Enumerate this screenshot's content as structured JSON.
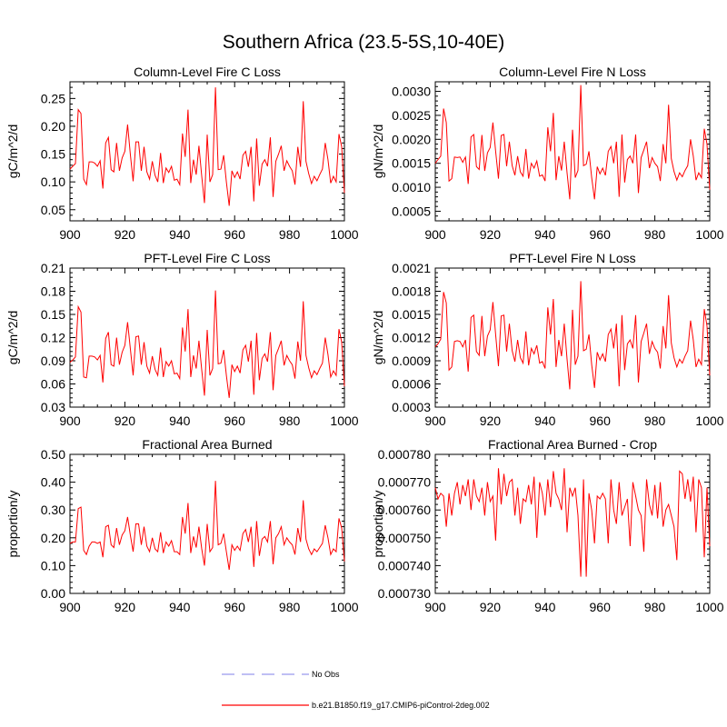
{
  "figure": {
    "title": "Southern Africa (23.5-5S,10-40E)"
  },
  "legend": {
    "placement": "bottom-center",
    "entries": [
      {
        "label": "No Obs",
        "color": "#9999ee",
        "dash": true
      },
      {
        "label": "b.e21.B1850.f19_g17.CMIP6-piControl-2deg.002",
        "color": "#ff0000",
        "dash": false
      }
    ]
  },
  "chart_data": [
    {
      "type": "line",
      "title": "Column-Level Fire C Loss",
      "xlabel": "",
      "ylabel": "gC/m^2/d",
      "xlim": [
        900,
        1000
      ],
      "ylim": [
        0.03,
        0.28
      ],
      "xticks": [
        900,
        920,
        940,
        960,
        980,
        1000
      ],
      "yticks": [
        0.05,
        0.1,
        0.15,
        0.2,
        0.25
      ],
      "ytick_labels": [
        "0.05",
        "0.10",
        "0.15",
        "0.20",
        "0.25"
      ],
      "x_start": 900,
      "series": [
        {
          "name": "b.e21.B1850.f19_g17.CMIP6-piControl-2deg.002",
          "color": "#ff0000",
          "values": [
            0.123,
            0.128,
            0.133,
            0.23,
            0.223,
            0.105,
            0.095,
            0.136,
            0.136,
            0.134,
            0.128,
            0.138,
            0.088,
            0.17,
            0.18,
            0.122,
            0.118,
            0.17,
            0.12,
            0.143,
            0.155,
            0.203,
            0.15,
            0.101,
            0.172,
            0.172,
            0.12,
            0.163,
            0.118,
            0.105,
            0.137,
            0.112,
            0.1,
            0.152,
            0.098,
            0.125,
            0.117,
            0.128,
            0.103,
            0.105,
            0.095,
            0.187,
            0.145,
            0.23,
            0.098,
            0.14,
            0.113,
            0.165,
            0.11,
            0.062,
            0.185,
            0.1,
            0.113,
            0.27,
            0.122,
            0.123,
            0.148,
            0.1,
            0.057,
            0.12,
            0.108,
            0.118,
            0.105,
            0.148,
            0.155,
            0.127,
            0.163,
            0.065,
            0.178,
            0.093,
            0.132,
            0.14,
            0.128,
            0.18,
            0.073,
            0.137,
            0.15,
            0.165,
            0.12,
            0.138,
            0.128,
            0.12,
            0.095,
            0.163,
            0.127,
            0.245,
            0.137,
            0.115,
            0.097,
            0.11,
            0.102,
            0.113,
            0.123,
            0.17,
            0.14,
            0.098,
            0.11,
            0.1,
            0.186,
            0.163,
            0.08
          ]
        }
      ]
    },
    {
      "type": "line",
      "title": "Column-Level Fire N Loss",
      "xlabel": "",
      "ylabel": "gN/m^2/d",
      "xlim": [
        900,
        1000
      ],
      "ylim": [
        0.0003,
        0.0032
      ],
      "xticks": [
        900,
        920,
        940,
        960,
        980,
        1000
      ],
      "yticks": [
        0.0005,
        0.001,
        0.0015,
        0.002,
        0.0025,
        0.003
      ],
      "ytick_labels": [
        "0.0005",
        "0.0010",
        "0.0015",
        "0.0020",
        "0.0025",
        "0.0030"
      ],
      "x_start": 900,
      "series": [
        {
          "name": "b.e21.B1850.f19_g17.CMIP6-piControl-2deg.002",
          "color": "#ff0000",
          "values": [
            0.0015,
            0.00158,
            0.00165,
            0.00264,
            0.00235,
            0.00113,
            0.00118,
            0.00163,
            0.00162,
            0.00163,
            0.00152,
            0.00163,
            0.00107,
            0.00205,
            0.0021,
            0.00143,
            0.00137,
            0.00209,
            0.00134,
            0.00172,
            0.00183,
            0.00235,
            0.00175,
            0.00118,
            0.00208,
            0.0021,
            0.00144,
            0.00195,
            0.00145,
            0.00125,
            0.00165,
            0.00132,
            0.00123,
            0.0018,
            0.00118,
            0.0015,
            0.0014,
            0.00155,
            0.00123,
            0.00126,
            0.00113,
            0.00225,
            0.00175,
            0.00255,
            0.00115,
            0.00165,
            0.00135,
            0.00195,
            0.0013,
            0.00075,
            0.0022,
            0.0012,
            0.00135,
            0.00313,
            0.00145,
            0.00148,
            0.00175,
            0.0012,
            0.00075,
            0.00143,
            0.00128,
            0.0014,
            0.00125,
            0.00175,
            0.00185,
            0.0015,
            0.00195,
            0.0008,
            0.0021,
            0.0011,
            0.00158,
            0.00165,
            0.0015,
            0.0021,
            0.00088,
            0.00162,
            0.00178,
            0.00195,
            0.0014,
            0.00162,
            0.0015,
            0.00143,
            0.00113,
            0.0019,
            0.0015,
            0.00272,
            0.0016,
            0.00133,
            0.00115,
            0.0013,
            0.00122,
            0.00135,
            0.00145,
            0.002,
            0.00165,
            0.00115,
            0.0013,
            0.0012,
            0.00222,
            0.0019,
            0.00095
          ]
        }
      ]
    },
    {
      "type": "line",
      "title": "PFT-Level Fire C Loss",
      "xlabel": "",
      "ylabel": "gC/m^2/d",
      "xlim": [
        900,
        1000
      ],
      "ylim": [
        0.03,
        0.21
      ],
      "xticks": [
        900,
        920,
        940,
        960,
        980,
        1000
      ],
      "yticks": [
        0.03,
        0.06,
        0.09,
        0.12,
        0.15,
        0.18,
        0.21
      ],
      "ytick_labels": [
        "0.03",
        "0.06",
        "0.09",
        "0.12",
        "0.15",
        "0.18",
        "0.21"
      ],
      "x_start": 900,
      "series": [
        {
          "name": "b.e21.B1850.f19_g17.CMIP6-piControl-2deg.002",
          "color": "#ff0000",
          "values": [
            0.088,
            0.091,
            0.095,
            0.16,
            0.153,
            0.069,
            0.068,
            0.096,
            0.096,
            0.095,
            0.091,
            0.097,
            0.062,
            0.119,
            0.127,
            0.085,
            0.083,
            0.12,
            0.085,
            0.101,
            0.11,
            0.14,
            0.106,
            0.071,
            0.121,
            0.122,
            0.085,
            0.114,
            0.083,
            0.074,
            0.096,
            0.079,
            0.071,
            0.107,
            0.069,
            0.089,
            0.083,
            0.09,
            0.073,
            0.074,
            0.067,
            0.133,
            0.102,
            0.157,
            0.069,
            0.097,
            0.08,
            0.116,
            0.078,
            0.045,
            0.13,
            0.071,
            0.08,
            0.181,
            0.086,
            0.087,
            0.104,
            0.071,
            0.042,
            0.085,
            0.076,
            0.083,
            0.074,
            0.104,
            0.11,
            0.089,
            0.116,
            0.046,
            0.126,
            0.065,
            0.093,
            0.099,
            0.089,
            0.127,
            0.052,
            0.097,
            0.106,
            0.116,
            0.084,
            0.097,
            0.09,
            0.085,
            0.067,
            0.115,
            0.09,
            0.167,
            0.097,
            0.081,
            0.068,
            0.077,
            0.072,
            0.08,
            0.087,
            0.12,
            0.098,
            0.069,
            0.077,
            0.071,
            0.131,
            0.114,
            0.057
          ]
        }
      ]
    },
    {
      "type": "line",
      "title": "PFT-Level Fire N Loss",
      "xlabel": "",
      "ylabel": "gN/m^2/d",
      "xlim": [
        900,
        1000
      ],
      "ylim": [
        0.0003,
        0.0021
      ],
      "xticks": [
        900,
        920,
        940,
        960,
        980,
        1000
      ],
      "yticks": [
        0.0003,
        0.0006,
        0.0009,
        0.0012,
        0.0015,
        0.0018,
        0.0021
      ],
      "ytick_labels": [
        "0.0003",
        "0.0006",
        "0.0009",
        "0.0012",
        "0.0015",
        "0.0018",
        "0.0021"
      ],
      "x_start": 900,
      "series": [
        {
          "name": "b.e21.B1850.f19_g17.CMIP6-piControl-2deg.002",
          "color": "#ff0000",
          "values": [
            0.00108,
            0.00112,
            0.00118,
            0.00179,
            0.00165,
            0.00078,
            0.00082,
            0.00115,
            0.00116,
            0.00115,
            0.00108,
            0.00117,
            0.00076,
            0.00146,
            0.00149,
            0.00102,
            0.00097,
            0.00148,
            0.00096,
            0.00122,
            0.0013,
            0.00166,
            0.00124,
            0.00083,
            0.00148,
            0.00149,
            0.00102,
            0.00138,
            0.00103,
            0.00089,
            0.00117,
            0.00094,
            0.00087,
            0.00128,
            0.00084,
            0.00106,
            0.00099,
            0.0011,
            0.00087,
            0.00089,
            0.0008,
            0.00159,
            0.00124,
            0.0017,
            0.00082,
            0.00117,
            0.00096,
            0.00138,
            0.00092,
            0.00053,
            0.00156,
            0.00085,
            0.00096,
            0.00193,
            0.00103,
            0.00105,
            0.00124,
            0.00085,
            0.00055,
            0.00101,
            0.00091,
            0.00099,
            0.00089,
            0.00124,
            0.00131,
            0.00106,
            0.00138,
            0.00057,
            0.00149,
            0.00078,
            0.00112,
            0.00117,
            0.00106,
            0.00149,
            0.00062,
            0.00115,
            0.00126,
            0.00138,
            0.00099,
            0.00115,
            0.00106,
            0.00101,
            0.0008,
            0.00135,
            0.00106,
            0.00175,
            0.00113,
            0.00094,
            0.00082,
            0.00092,
            0.00087,
            0.00096,
            0.00103,
            0.00142,
            0.00117,
            0.00082,
            0.00092,
            0.00085,
            0.00157,
            0.00135,
            0.00071
          ]
        }
      ]
    },
    {
      "type": "line",
      "title": "Fractional Area Burned",
      "xlabel": "",
      "ylabel": "proportion/y",
      "xlim": [
        900,
        1000
      ],
      "ylim": [
        0.0,
        0.5
      ],
      "xticks": [
        900,
        920,
        940,
        960,
        980,
        1000
      ],
      "yticks": [
        0.0,
        0.1,
        0.2,
        0.3,
        0.4,
        0.5
      ],
      "ytick_labels": [
        "0.00",
        "0.10",
        "0.20",
        "0.30",
        "0.40",
        "0.50"
      ],
      "x_start": 900,
      "series": [
        {
          "name": "b.e21.B1850.f19_g17.CMIP6-piControl-2deg.002",
          "color": "#ff0000",
          "values": [
            0.18,
            0.185,
            0.185,
            0.305,
            0.31,
            0.155,
            0.14,
            0.17,
            0.185,
            0.185,
            0.18,
            0.185,
            0.13,
            0.24,
            0.245,
            0.175,
            0.165,
            0.235,
            0.175,
            0.21,
            0.225,
            0.275,
            0.21,
            0.15,
            0.25,
            0.25,
            0.175,
            0.24,
            0.17,
            0.15,
            0.2,
            0.16,
            0.15,
            0.22,
            0.145,
            0.185,
            0.17,
            0.19,
            0.15,
            0.15,
            0.14,
            0.275,
            0.215,
            0.325,
            0.145,
            0.205,
            0.165,
            0.24,
            0.16,
            0.1,
            0.25,
            0.15,
            0.165,
            0.405,
            0.175,
            0.18,
            0.215,
            0.15,
            0.085,
            0.175,
            0.155,
            0.17,
            0.155,
            0.215,
            0.23,
            0.185,
            0.24,
            0.095,
            0.26,
            0.135,
            0.195,
            0.205,
            0.185,
            0.26,
            0.105,
            0.2,
            0.215,
            0.24,
            0.175,
            0.2,
            0.185,
            0.175,
            0.14,
            0.235,
            0.185,
            0.335,
            0.195,
            0.16,
            0.14,
            0.16,
            0.15,
            0.165,
            0.18,
            0.245,
            0.2,
            0.14,
            0.16,
            0.15,
            0.27,
            0.235,
            0.115
          ]
        }
      ]
    },
    {
      "type": "line",
      "title": "Fractional Area Burned - Crop",
      "xlabel": "",
      "ylabel": "proportion/y",
      "xlim": [
        900,
        1000
      ],
      "ylim": [
        0.00073,
        0.00078
      ],
      "xticks": [
        900,
        920,
        940,
        960,
        980,
        1000
      ],
      "yticks": [
        0.00073,
        0.00074,
        0.00075,
        0.00076,
        0.00077,
        0.00078
      ],
      "ytick_labels": [
        "0.000730",
        "0.000740",
        "0.000750",
        "0.000760",
        "0.000770",
        "0.000780"
      ],
      "x_start": 900,
      "series": [
        {
          "name": "b.e21.B1850.f19_g17.CMIP6-piControl-2deg.002",
          "color": "#ff0000",
          "values": [
            0.000768,
            0.000764,
            0.000766,
            0.000765,
            0.000754,
            0.000766,
            0.000758,
            0.000766,
            0.00077,
            0.000762,
            0.000769,
            0.000765,
            0.000771,
            0.00076,
            0.000771,
            0.000765,
            0.000763,
            0.000768,
            0.000758,
            0.00077,
            0.000763,
            0.000765,
            0.000749,
            0.000775,
            0.000762,
            0.000773,
            0.000765,
            0.00077,
            0.000771,
            0.000758,
            0.000768,
            0.000755,
            0.000764,
            0.000763,
            0.000769,
            0.000762,
            0.000772,
            0.00075,
            0.00077,
            0.000766,
            0.000758,
            0.000771,
            0.000761,
            0.000774,
            0.000766,
            0.000764,
            0.00076,
            0.000775,
            0.000752,
            0.000768,
            0.000765,
            0.000768,
            0.000758,
            0.000736,
            0.000771,
            0.000736,
            0.000766,
            0.00076,
            0.000748,
            0.000765,
            0.000764,
            0.000766,
            0.000764,
            0.000748,
            0.000771,
            0.00076,
            0.000755,
            0.00077,
            0.000758,
            0.000761,
            0.000764,
            0.000747,
            0.00077,
            0.000765,
            0.00076,
            0.000758,
            0.000745,
            0.000771,
            0.000762,
            0.000758,
            0.000769,
            0.000757,
            0.00077,
            0.000754,
            0.00076,
            0.000762,
            0.000758,
            0.000754,
            0.000742,
            0.000774,
            0.000773,
            0.000764,
            0.000771,
            0.000763,
            0.000772,
            0.000752,
            0.000771,
            0.000768,
            0.000743,
            0.000768,
            0.000747
          ]
        }
      ]
    }
  ]
}
